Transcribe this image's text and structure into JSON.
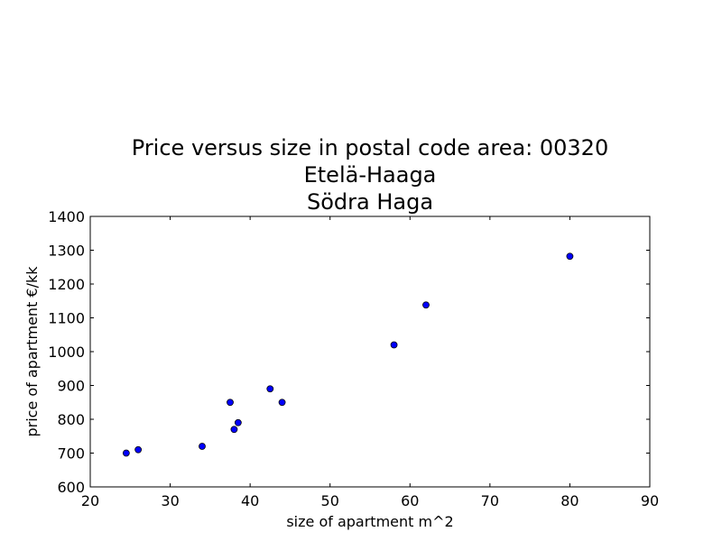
{
  "chart_data": {
    "type": "scatter",
    "title_lines": [
      "Price versus size in postal code area: 00320",
      "Etelä-Haaga",
      "Södra Haga"
    ],
    "xlabel": "size of apartment m^2",
    "ylabel": "price of apartment €/kk",
    "xlim": [
      20,
      90
    ],
    "ylim": [
      600,
      1400
    ],
    "xticks": [
      20,
      30,
      40,
      50,
      60,
      70,
      80,
      90
    ],
    "yticks": [
      600,
      700,
      800,
      900,
      1000,
      1100,
      1200,
      1300,
      1400
    ],
    "grid": false,
    "legend": "none",
    "marker_color": "#0000ff",
    "marker_edge_color": "#000000",
    "points": [
      {
        "x": 24.5,
        "y": 700
      },
      {
        "x": 26,
        "y": 710
      },
      {
        "x": 34,
        "y": 720
      },
      {
        "x": 37.5,
        "y": 850
      },
      {
        "x": 38,
        "y": 770
      },
      {
        "x": 38.5,
        "y": 790
      },
      {
        "x": 42.5,
        "y": 890
      },
      {
        "x": 44,
        "y": 850
      },
      {
        "x": 58,
        "y": 1020
      },
      {
        "x": 62,
        "y": 1138
      },
      {
        "x": 80,
        "y": 1282
      }
    ]
  }
}
